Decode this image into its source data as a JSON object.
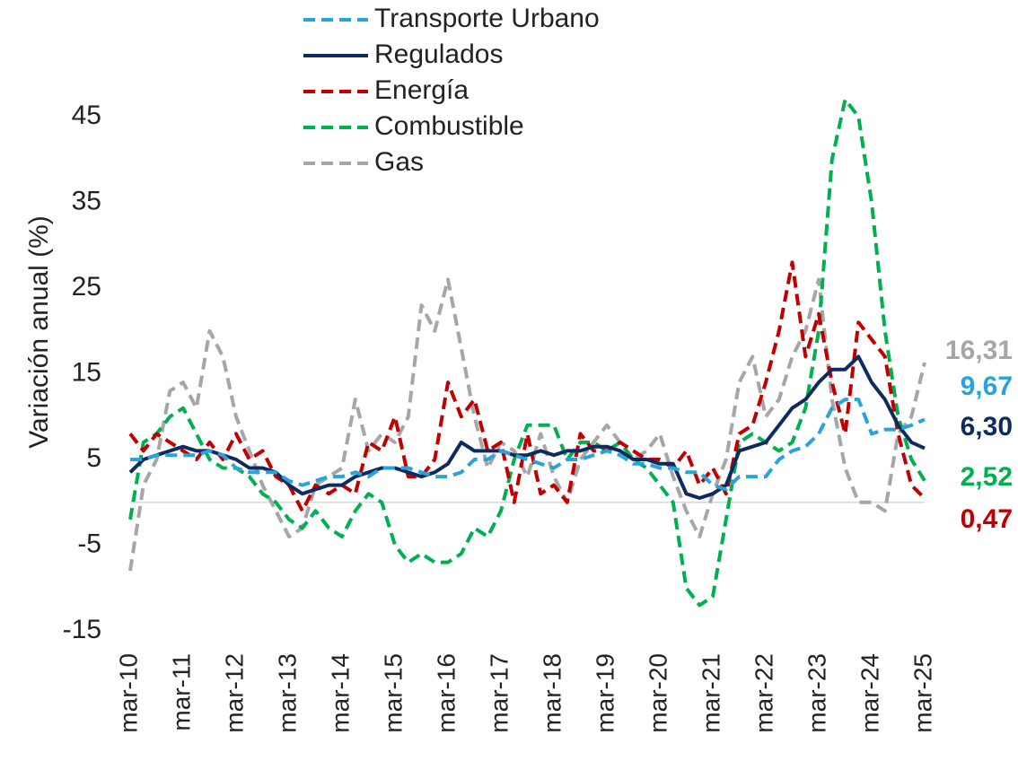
{
  "chart_data": {
    "type": "line",
    "ylabel": "Variación anual (%)",
    "categories": [
      "mar-10",
      null,
      null,
      null,
      "mar-11",
      null,
      null,
      null,
      "mar-12",
      null,
      null,
      null,
      "mar-13",
      null,
      null,
      null,
      "mar-14",
      null,
      null,
      null,
      "mar-15",
      null,
      null,
      null,
      "mar-16",
      null,
      null,
      null,
      "mar-17",
      null,
      null,
      null,
      "mar-18",
      null,
      null,
      null,
      "mar-19",
      null,
      null,
      null,
      "mar-20",
      null,
      null,
      null,
      "mar-21",
      null,
      null,
      null,
      "mar-22",
      null,
      null,
      null,
      "mar-23",
      null,
      null,
      null,
      "mar-24",
      null,
      null,
      null,
      "mar-25"
    ],
    "ylim": [
      -15,
      50
    ],
    "yticks": [
      -15,
      -5,
      5,
      15,
      25,
      35,
      45
    ],
    "series": [
      {
        "name": "Transporte Urbano",
        "color": "#29a3dc",
        "dashed": true,
        "values": [
          5,
          5,
          5.5,
          5.5,
          5.5,
          5.5,
          6,
          5.5,
          4,
          3.5,
          3.5,
          3.5,
          2.5,
          2,
          2.5,
          3,
          3,
          3.5,
          3,
          4,
          4,
          4,
          3.5,
          3,
          3,
          3.5,
          5,
          5,
          6,
          5.5,
          5,
          4.5,
          4,
          5,
          5,
          5.5,
          6,
          5.5,
          4.5,
          4.5,
          4,
          4,
          3.5,
          3.5,
          2,
          1.5,
          3,
          3,
          3,
          5,
          6,
          6.5,
          8,
          11,
          12,
          12,
          8,
          8.5,
          8.5,
          9,
          9.67
        ],
        "value_labels": [
          null,
          null,
          null,
          null,
          null,
          null,
          null,
          null,
          null,
          null,
          null,
          null,
          null,
          null,
          null,
          null,
          null,
          null,
          null,
          null,
          null,
          null,
          null,
          null,
          null,
          null,
          null,
          null,
          null,
          null,
          null,
          null,
          null,
          null,
          null,
          null,
          null,
          null,
          null,
          null,
          null,
          null,
          null,
          null,
          null,
          null,
          null,
          null,
          null,
          null,
          null,
          null,
          null,
          null,
          null,
          null,
          null,
          null,
          null,
          null,
          "9,67"
        ]
      },
      {
        "name": "Regulados",
        "color": "#0d2b5f",
        "dashed": false,
        "values": [
          3.5,
          5,
          5.5,
          6,
          6.5,
          6,
          6,
          5.5,
          5,
          4,
          4,
          3.5,
          2,
          1,
          1.5,
          2,
          2,
          3,
          3.5,
          4,
          4,
          3.5,
          3,
          3.5,
          4.5,
          7,
          6,
          6,
          6,
          5.5,
          5.5,
          6,
          5.5,
          6,
          6,
          6.5,
          6.5,
          6,
          5,
          5,
          4.5,
          4.5,
          1,
          0.5,
          1,
          2,
          6,
          6.5,
          7,
          9,
          11,
          12,
          14,
          15.5,
          15.5,
          17,
          14,
          12,
          9,
          7,
          6.3
        ],
        "value_labels": [
          null,
          null,
          null,
          null,
          null,
          null,
          null,
          null,
          null,
          null,
          null,
          null,
          null,
          null,
          null,
          null,
          null,
          null,
          null,
          null,
          null,
          null,
          null,
          null,
          null,
          null,
          null,
          null,
          null,
          null,
          null,
          null,
          null,
          null,
          null,
          null,
          null,
          null,
          null,
          null,
          null,
          null,
          null,
          null,
          null,
          null,
          null,
          null,
          null,
          null,
          null,
          null,
          null,
          null,
          null,
          null,
          null,
          null,
          null,
          null,
          "6,30"
        ]
      },
      {
        "name": "Energía",
        "color": "#c00000",
        "dashed": true,
        "values": [
          8,
          6,
          8,
          7,
          6,
          5,
          7,
          5,
          8,
          5,
          6,
          3,
          2,
          -1,
          2,
          1,
          2,
          1,
          7,
          6,
          10,
          3,
          3,
          5,
          14,
          10,
          12,
          6,
          7,
          0,
          8,
          1,
          2,
          0,
          8,
          6,
          6,
          7,
          6,
          5,
          5,
          4,
          6,
          2,
          4,
          1,
          8,
          9,
          14,
          20,
          28,
          17,
          22,
          14,
          8,
          21,
          19,
          17,
          8,
          2,
          0.47
        ],
        "value_labels": [
          null,
          null,
          null,
          null,
          null,
          null,
          null,
          null,
          null,
          null,
          null,
          null,
          null,
          null,
          null,
          null,
          null,
          null,
          null,
          null,
          null,
          null,
          null,
          null,
          null,
          null,
          null,
          null,
          null,
          null,
          null,
          null,
          null,
          null,
          null,
          null,
          null,
          null,
          null,
          null,
          null,
          null,
          null,
          null,
          null,
          null,
          null,
          null,
          null,
          null,
          null,
          null,
          null,
          null,
          null,
          null,
          null,
          null,
          null,
          null,
          "0,47"
        ]
      },
      {
        "name": "Combustible",
        "color": "#00b050",
        "dashed": true,
        "values": [
          -2,
          7,
          8,
          10,
          11,
          8,
          5,
          4,
          4,
          3,
          1,
          0,
          -2,
          -3,
          -1,
          -3,
          -4,
          -1,
          1,
          0,
          -5,
          -7,
          -6,
          -7,
          -7,
          -6,
          -3,
          -4,
          -1,
          5,
          9,
          9,
          9,
          5,
          7,
          7,
          6,
          7,
          5,
          4,
          2,
          0,
          -10,
          -12,
          -11,
          -2,
          7,
          8,
          7,
          6,
          7,
          11,
          20,
          40,
          47,
          45,
          35,
          20,
          10,
          5,
          2.52
        ],
        "value_labels": [
          null,
          null,
          null,
          null,
          null,
          null,
          null,
          null,
          null,
          null,
          null,
          null,
          null,
          null,
          null,
          null,
          null,
          null,
          null,
          null,
          null,
          null,
          null,
          null,
          null,
          null,
          null,
          null,
          null,
          null,
          null,
          null,
          null,
          null,
          null,
          null,
          null,
          null,
          null,
          null,
          null,
          null,
          null,
          null,
          null,
          null,
          null,
          null,
          null,
          null,
          null,
          null,
          null,
          null,
          null,
          null,
          null,
          null,
          null,
          null,
          "2,52"
        ]
      },
      {
        "name": "Gas",
        "color": "#a6a6a6",
        "dashed": true,
        "values": [
          -8,
          2,
          5,
          13,
          14,
          11,
          20,
          17,
          10,
          6,
          2,
          -1,
          -4,
          -3,
          2,
          3,
          4,
          12,
          6,
          8,
          7,
          10,
          23,
          20,
          26,
          18,
          10,
          4,
          7,
          6,
          3,
          8,
          3,
          0,
          5,
          7,
          9,
          7,
          5,
          6,
          8,
          3,
          -1,
          -4,
          1,
          5,
          14,
          17,
          10,
          12,
          17,
          20,
          26,
          12,
          4,
          0,
          0,
          -1,
          8,
          10,
          16.31
        ],
        "value_labels": [
          null,
          null,
          null,
          null,
          null,
          null,
          null,
          null,
          null,
          null,
          null,
          null,
          null,
          null,
          null,
          null,
          null,
          null,
          null,
          null,
          null,
          null,
          null,
          null,
          null,
          null,
          null,
          null,
          null,
          null,
          null,
          null,
          null,
          null,
          null,
          null,
          null,
          null,
          null,
          null,
          null,
          null,
          null,
          null,
          null,
          null,
          null,
          null,
          null,
          null,
          null,
          null,
          null,
          null,
          null,
          null,
          null,
          null,
          null,
          null,
          "16,31"
        ]
      }
    ]
  }
}
